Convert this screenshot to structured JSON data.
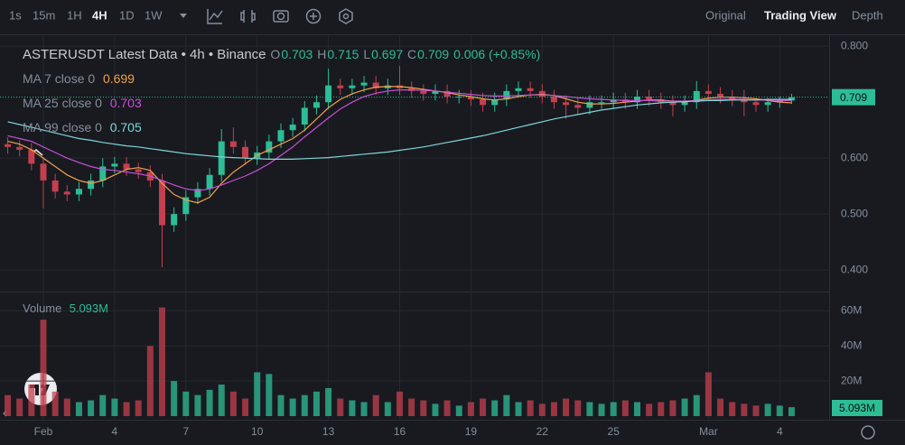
{
  "toolbar": {
    "intervals": [
      "1s",
      "15m",
      "1H",
      "4H",
      "1D",
      "1W"
    ],
    "views": [
      "Original",
      "Trading View",
      "Depth"
    ]
  },
  "chart_data": {
    "type": "candlestick",
    "title": "ASTERUSDT Latest Data • 4h • Binance",
    "ohlc_labels": [
      "O",
      "H",
      "L",
      "C"
    ],
    "change": "0.006 (+0.85%)",
    "categories": [
      null,
      null,
      null,
      "Feb",
      null,
      null,
      null,
      null,
      null,
      "4",
      null,
      null,
      null,
      null,
      null,
      "7",
      null,
      null,
      null,
      null,
      null,
      "10",
      null,
      null,
      null,
      null,
      null,
      "13",
      null,
      null,
      null,
      null,
      null,
      "16",
      null,
      null,
      null,
      null,
      null,
      "19",
      null,
      null,
      null,
      null,
      null,
      "22",
      null,
      null,
      null,
      null,
      null,
      "25",
      null,
      null,
      null,
      null,
      null,
      null,
      null,
      "Mar",
      null,
      null,
      null,
      null,
      null,
      "4",
      null
    ],
    "open": [
      0.625,
      0.62,
      0.615,
      0.59,
      0.56,
      0.54,
      0.535,
      0.545,
      0.56,
      0.585,
      0.59,
      0.58,
      0.575,
      0.56,
      0.48,
      0.5,
      0.53,
      0.545,
      0.57,
      0.63,
      0.62,
      0.6,
      0.61,
      0.63,
      0.65,
      0.66,
      0.69,
      0.7,
      0.73,
      0.725,
      0.73,
      0.735,
      0.725,
      0.73,
      0.725,
      0.72,
      0.715,
      0.72,
      0.71,
      0.71,
      0.705,
      0.695,
      0.705,
      0.72,
      0.725,
      0.72,
      0.71,
      0.7,
      0.695,
      0.69,
      0.7,
      0.7,
      0.705,
      0.7,
      0.71,
      0.705,
      0.7,
      0.695,
      0.7,
      0.72,
      0.715,
      0.71,
      0.705,
      0.7,
      0.695,
      0.7,
      0.703
    ],
    "high": [
      0.637,
      0.632,
      0.627,
      0.602,
      0.572,
      0.552,
      0.557,
      0.572,
      0.6,
      0.602,
      0.602,
      0.592,
      0.587,
      0.572,
      0.512,
      0.542,
      0.557,
      0.582,
      0.652,
      0.655,
      0.632,
      0.622,
      0.642,
      0.662,
      0.672,
      0.702,
      0.712,
      0.76,
      0.742,
      0.742,
      0.747,
      0.747,
      0.742,
      0.765,
      0.737,
      0.732,
      0.732,
      0.732,
      0.722,
      0.722,
      0.717,
      0.717,
      0.732,
      0.737,
      0.737,
      0.732,
      0.722,
      0.712,
      0.707,
      0.712,
      0.712,
      0.717,
      0.717,
      0.722,
      0.722,
      0.717,
      0.712,
      0.712,
      0.738,
      0.732,
      0.727,
      0.722,
      0.722,
      0.707,
      0.707,
      0.71,
      0.715
    ],
    "low": [
      0.608,
      0.603,
      0.578,
      0.51,
      0.528,
      0.523,
      0.523,
      0.533,
      0.548,
      0.573,
      0.568,
      0.563,
      0.548,
      0.405,
      0.468,
      0.488,
      0.518,
      0.533,
      0.558,
      0.608,
      0.588,
      0.588,
      0.598,
      0.618,
      0.638,
      0.648,
      0.678,
      0.688,
      0.713,
      0.713,
      0.718,
      0.713,
      0.713,
      0.713,
      0.708,
      0.703,
      0.703,
      0.698,
      0.698,
      0.693,
      0.683,
      0.683,
      0.693,
      0.708,
      0.708,
      0.698,
      0.688,
      0.67,
      0.678,
      0.678,
      0.688,
      0.688,
      0.688,
      0.688,
      0.693,
      0.688,
      0.675,
      0.683,
      0.688,
      0.703,
      0.698,
      0.693,
      0.675,
      0.683,
      0.683,
      0.69,
      0.697
    ],
    "close": [
      0.62,
      0.615,
      0.59,
      0.56,
      0.54,
      0.535,
      0.545,
      0.56,
      0.585,
      0.59,
      0.58,
      0.575,
      0.56,
      0.48,
      0.5,
      0.53,
      0.545,
      0.57,
      0.63,
      0.62,
      0.6,
      0.61,
      0.63,
      0.65,
      0.66,
      0.69,
      0.7,
      0.73,
      0.725,
      0.73,
      0.735,
      0.725,
      0.73,
      0.725,
      0.72,
      0.715,
      0.72,
      0.71,
      0.71,
      0.705,
      0.695,
      0.705,
      0.72,
      0.725,
      0.72,
      0.71,
      0.7,
      0.695,
      0.69,
      0.7,
      0.7,
      0.705,
      0.7,
      0.71,
      0.705,
      0.7,
      0.695,
      0.7,
      0.72,
      0.715,
      0.71,
      0.705,
      0.7,
      0.695,
      0.7,
      0.703,
      0.709
    ],
    "up_color": "#2dbd96",
    "down_color": "#c4404e",
    "ma": [
      {
        "name": "MA 7 close 0",
        "color": "#f0a04b",
        "values": [
          0.63,
          0.625,
          0.615,
          0.6,
          0.585,
          0.57,
          0.56,
          0.555,
          0.56,
          0.57,
          0.58,
          0.583,
          0.578,
          0.555,
          0.535,
          0.525,
          0.52,
          0.53,
          0.555,
          0.575,
          0.59,
          0.605,
          0.615,
          0.625,
          0.635,
          0.65,
          0.67,
          0.69,
          0.705,
          0.715,
          0.722,
          0.727,
          0.728,
          0.728,
          0.726,
          0.723,
          0.72,
          0.717,
          0.713,
          0.71,
          0.706,
          0.704,
          0.706,
          0.71,
          0.713,
          0.714,
          0.712,
          0.706,
          0.7,
          0.697,
          0.697,
          0.698,
          0.7,
          0.702,
          0.704,
          0.704,
          0.702,
          0.7,
          0.704,
          0.707,
          0.709,
          0.709,
          0.708,
          0.706,
          0.703,
          0.7,
          0.699
        ]
      },
      {
        "name": "MA 25 close 0",
        "color": "#c94fd6",
        "values": [
          0.64,
          0.635,
          0.63,
          0.62,
          0.61,
          0.6,
          0.592,
          0.585,
          0.58,
          0.578,
          0.575,
          0.572,
          0.568,
          0.56,
          0.552,
          0.545,
          0.542,
          0.545,
          0.552,
          0.56,
          0.568,
          0.578,
          0.59,
          0.605,
          0.62,
          0.638,
          0.655,
          0.672,
          0.688,
          0.7,
          0.71,
          0.716,
          0.72,
          0.722,
          0.722,
          0.721,
          0.72,
          0.718,
          0.716,
          0.714,
          0.712,
          0.711,
          0.711,
          0.712,
          0.713,
          0.713,
          0.712,
          0.71,
          0.708,
          0.706,
          0.705,
          0.704,
          0.703,
          0.703,
          0.703,
          0.702,
          0.702,
          0.702,
          0.703,
          0.704,
          0.705,
          0.705,
          0.705,
          0.704,
          0.704,
          0.703,
          0.703
        ]
      },
      {
        "name": "MA 99 close 0",
        "color": "#7fd6d8",
        "values": [
          0.665,
          0.66,
          0.655,
          0.65,
          0.645,
          0.64,
          0.635,
          0.632,
          0.628,
          0.625,
          0.622,
          0.62,
          0.617,
          0.614,
          0.611,
          0.608,
          0.606,
          0.604,
          0.602,
          0.601,
          0.6,
          0.599,
          0.598,
          0.598,
          0.598,
          0.599,
          0.6,
          0.601,
          0.603,
          0.605,
          0.607,
          0.609,
          0.611,
          0.614,
          0.617,
          0.62,
          0.624,
          0.628,
          0.632,
          0.636,
          0.64,
          0.645,
          0.65,
          0.655,
          0.66,
          0.665,
          0.67,
          0.674,
          0.678,
          0.682,
          0.686,
          0.689,
          0.692,
          0.695,
          0.697,
          0.699,
          0.7,
          0.701,
          0.702,
          0.703,
          0.703,
          0.704,
          0.704,
          0.704,
          0.705,
          0.705,
          0.705
        ]
      }
    ],
    "ylim": [
      0.363,
      0.815
    ],
    "yticks": [
      {
        "value": 0.4,
        "label": "0.400"
      },
      {
        "value": 0.5,
        "label": "0.500"
      },
      {
        "value": 0.6,
        "label": "0.600"
      },
      {
        "value": 0.8,
        "label": "0.800"
      }
    ],
    "volume_title": "Volume",
    "volume": [
      12,
      10,
      18,
      55,
      14,
      10,
      8,
      9,
      12,
      10,
      8,
      9,
      40,
      62,
      20,
      14,
      12,
      15,
      18,
      14,
      10,
      25,
      24,
      12,
      10,
      12,
      14,
      16,
      10,
      9,
      8,
      12,
      8,
      14,
      10,
      9,
      7,
      9,
      6,
      8,
      10,
      9,
      12,
      8,
      9,
      7,
      8,
      10,
      9,
      8,
      7,
      8,
      9,
      8,
      7,
      8,
      9,
      10,
      12,
      25,
      10,
      8,
      7,
      6,
      7,
      6,
      5.093
    ],
    "volume_label": "5.093M",
    "volume_ylim": [
      0,
      70
    ],
    "volume_yticks": [
      {
        "value": 20,
        "label": "20M"
      },
      {
        "value": 40,
        "label": "40M"
      },
      {
        "value": 60,
        "label": "60M"
      }
    ],
    "grid": true
  }
}
